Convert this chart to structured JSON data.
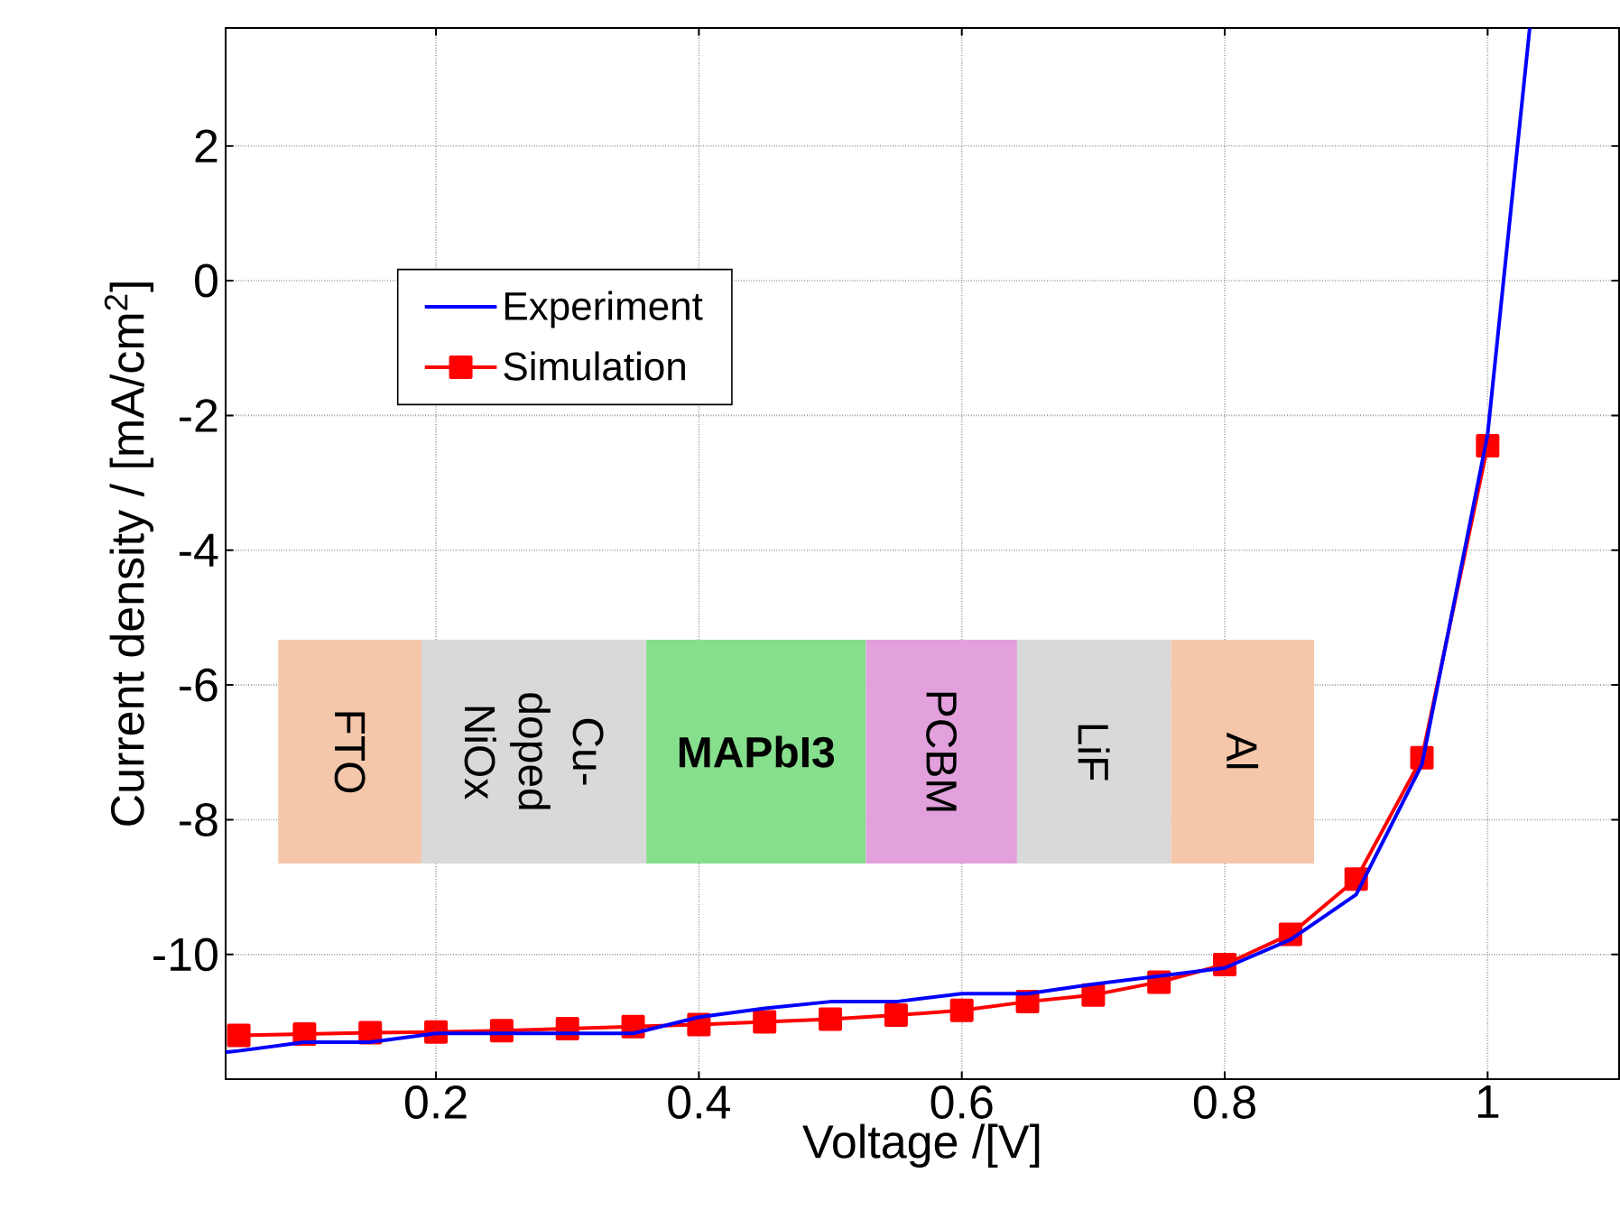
{
  "chart_data": {
    "type": "line",
    "xlabel": "Voltage /[V]",
    "ylabel": "Current density / [mA/cm$^{2}$]",
    "xlim": [
      0.04,
      1.1
    ],
    "ylim": [
      -11.85,
      3.75
    ],
    "xticks": [
      0.2,
      0.4,
      0.6,
      0.8,
      1
    ],
    "yticks": [
      -10,
      -8,
      -6,
      -4,
      -2,
      0,
      2
    ],
    "grid": true,
    "legend": "top left",
    "annotations": [
      "FTO",
      "Cu-doped NiOx",
      "MAPbI3",
      "PCBM",
      "LiF",
      "Al"
    ],
    "series": [
      {
        "name": "Experiment",
        "color": "#0000ff",
        "marker": "none",
        "x": [
          0.04,
          0.05,
          0.1,
          0.15,
          0.2,
          0.25,
          0.3,
          0.35,
          0.4,
          0.45,
          0.5,
          0.55,
          0.6,
          0.65,
          0.7,
          0.75,
          0.8,
          0.85,
          0.9,
          0.95,
          1.0,
          1.032
        ],
        "values": [
          -11.45,
          -11.43,
          -11.3,
          -11.3,
          -11.17,
          -11.17,
          -11.17,
          -11.17,
          -10.93,
          -10.8,
          -10.7,
          -10.7,
          -10.58,
          -10.58,
          -10.44,
          -10.32,
          -10.2,
          -9.78,
          -9.11,
          -7.18,
          -2.28,
          3.75
        ]
      },
      {
        "name": "Simulation",
        "color": "#ff0000",
        "marker": "square",
        "x": [
          0.05,
          0.1,
          0.15,
          0.2,
          0.25,
          0.3,
          0.35,
          0.4,
          0.45,
          0.5,
          0.55,
          0.6,
          0.65,
          0.7,
          0.75,
          0.8,
          0.85,
          0.9,
          0.95,
          1.0
        ],
        "values": [
          -11.2,
          -11.18,
          -11.16,
          -11.15,
          -11.13,
          -11.1,
          -11.07,
          -11.04,
          -11.0,
          -10.96,
          -10.9,
          -10.83,
          -10.7,
          -10.6,
          -10.41,
          -10.15,
          -9.7,
          -8.88,
          -7.08,
          -2.45
        ]
      }
    ]
  }
}
